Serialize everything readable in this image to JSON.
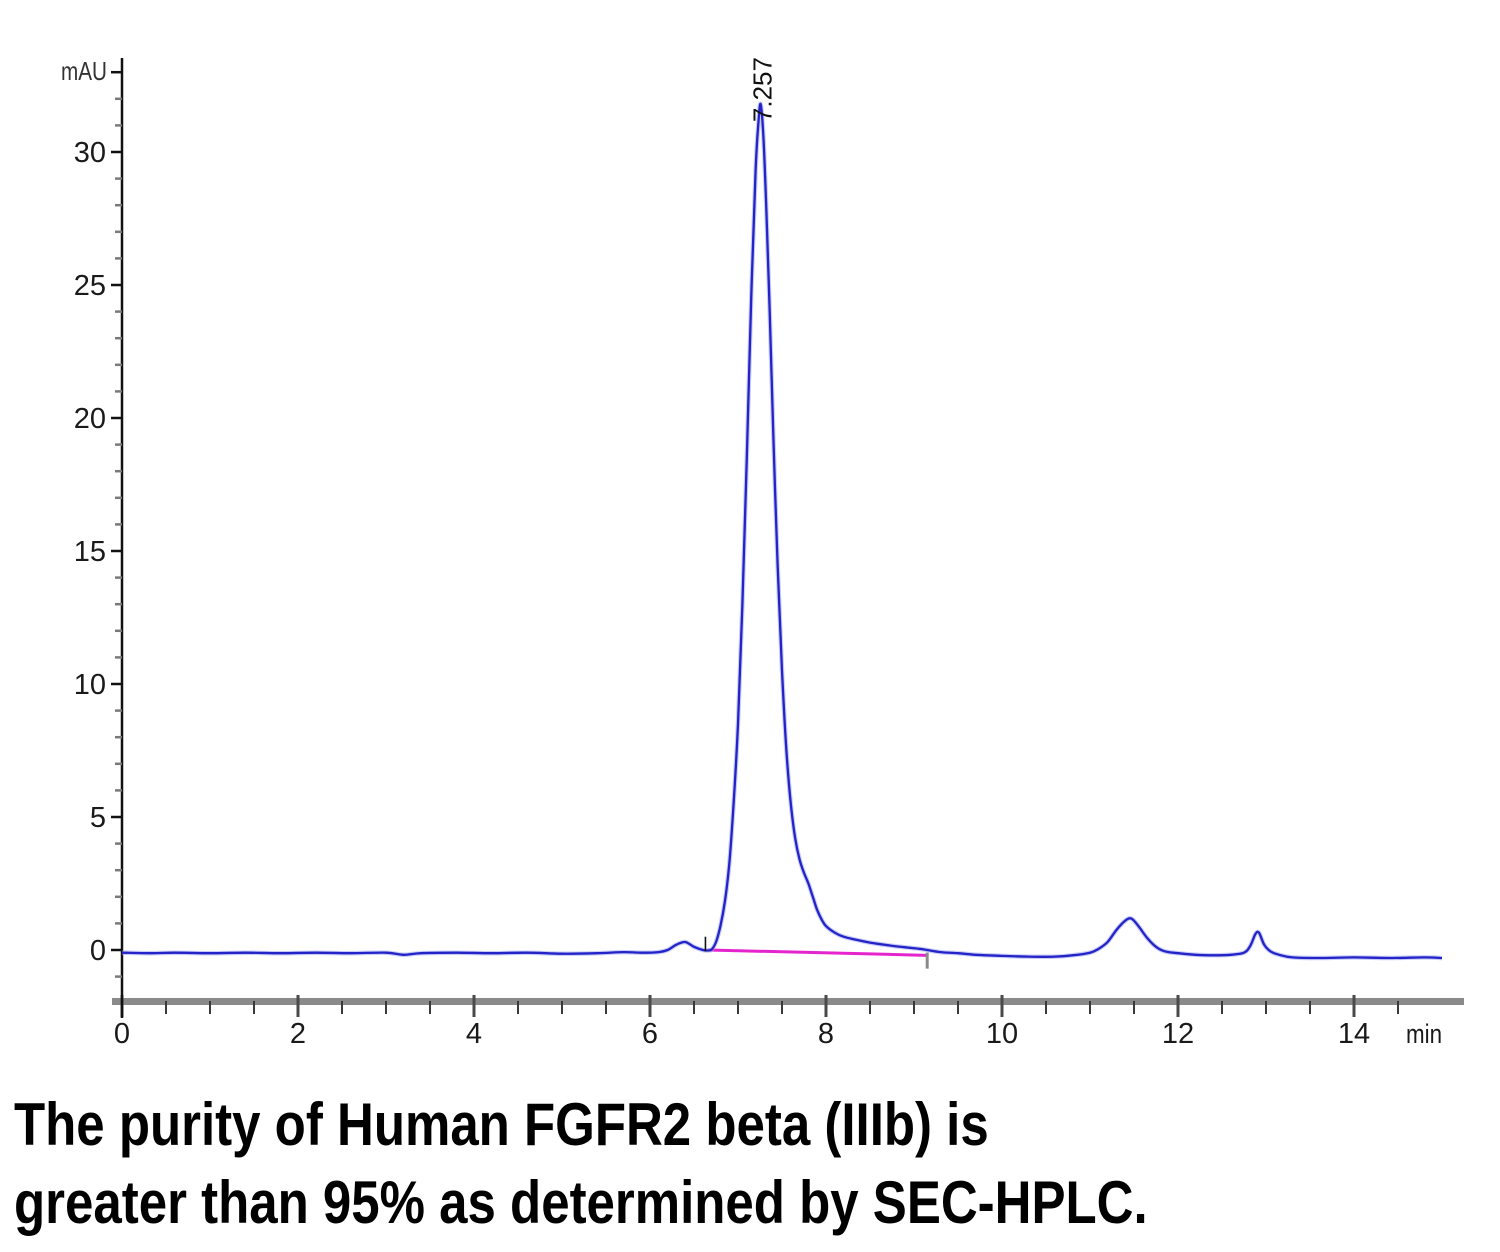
{
  "figure": {
    "kind": "SEC-HPLC chromatogram"
  },
  "caption": {
    "line1": "The purity of Human FGFR2 beta (IIIb) is",
    "line2": "greater than 95% as determined by SEC-HPLC."
  },
  "chart_data": {
    "type": "line",
    "title": "",
    "xlabel": "min",
    "ylabel": "mAU",
    "xlim": [
      0,
      15
    ],
    "ylim": [
      -2,
      33
    ],
    "x_ticks_major": [
      0,
      2,
      4,
      6,
      8,
      10,
      12,
      14
    ],
    "x_minor_step": 0.5,
    "y_ticks_major": [
      0,
      5,
      10,
      15,
      20,
      25,
      30
    ],
    "y_minor_step": 1,
    "y_axis_top_tick": 33,
    "grid": false,
    "legend": false,
    "colors": {
      "trace": "#2323c8",
      "trace_halo": "#9aa2ec",
      "integration_baseline": "#e524ce",
      "axis_band": "#8a8a8a",
      "major_tick": "#1a1a1a",
      "minor_tick": "#7a7a7a",
      "tick_label": "#1a1a1a"
    },
    "peaks": [
      {
        "rt_min": 6.4,
        "height_mAU": 0.3,
        "label": ""
      },
      {
        "rt_min": 7.257,
        "height_mAU": 31.8,
        "label": "7.257"
      },
      {
        "rt_min": 11.5,
        "height_mAU": 1.2,
        "label": ""
      },
      {
        "rt_min": 12.9,
        "height_mAU": 0.65,
        "label": ""
      }
    ],
    "integration": {
      "baseline_start": {
        "min": 6.66,
        "mAU": 0.0
      },
      "baseline_end": {
        "min": 9.15,
        "mAU": -0.2
      },
      "start_tick": {
        "min": 6.63,
        "from_mAU": 0.5,
        "to_mAU": -0.05,
        "color": "#111111"
      },
      "end_tick": {
        "min": 9.15,
        "from_mAU": -0.1,
        "to_mAU": -0.7,
        "color": "#8a8a8a"
      }
    },
    "series": [
      {
        "name": "UV absorbance trace",
        "x": [
          0,
          0.3,
          0.6,
          1.0,
          1.4,
          1.8,
          2.2,
          2.6,
          3.0,
          3.2,
          3.4,
          3.8,
          4.2,
          4.6,
          5.0,
          5.4,
          5.7,
          5.9,
          6.1,
          6.2,
          6.3,
          6.4,
          6.5,
          6.6,
          6.65,
          6.7,
          6.75,
          6.8,
          6.85,
          6.9,
          6.95,
          7.0,
          7.05,
          7.1,
          7.15,
          7.2,
          7.23,
          7.257,
          7.29,
          7.32,
          7.36,
          7.4,
          7.45,
          7.5,
          7.55,
          7.6,
          7.65,
          7.7,
          7.75,
          7.8,
          7.85,
          7.9,
          7.95,
          8.0,
          8.1,
          8.2,
          8.35,
          8.5,
          8.7,
          8.9,
          9.05,
          9.15,
          9.3,
          9.5,
          9.7,
          10.0,
          10.3,
          10.6,
          10.8,
          11.0,
          11.1,
          11.2,
          11.3,
          11.4,
          11.47,
          11.55,
          11.65,
          11.75,
          11.85,
          12.0,
          12.2,
          12.4,
          12.6,
          12.75,
          12.82,
          12.88,
          12.92,
          12.98,
          13.05,
          13.15,
          13.3,
          13.6,
          14.0,
          14.4,
          14.8,
          15.0
        ],
        "y": [
          -0.1,
          -0.12,
          -0.1,
          -0.12,
          -0.1,
          -0.12,
          -0.1,
          -0.12,
          -0.1,
          -0.18,
          -0.12,
          -0.1,
          -0.12,
          -0.1,
          -0.14,
          -0.12,
          -0.08,
          -0.1,
          -0.08,
          0.0,
          0.2,
          0.3,
          0.12,
          0.0,
          -0.02,
          0.02,
          0.3,
          0.9,
          1.8,
          3.2,
          5.5,
          8.5,
          13.0,
          18.5,
          24.5,
          29.3,
          31.0,
          31.8,
          30.5,
          28.0,
          24.0,
          19.5,
          14.5,
          10.5,
          7.5,
          5.5,
          4.2,
          3.4,
          2.9,
          2.5,
          2.0,
          1.5,
          1.15,
          0.9,
          0.65,
          0.5,
          0.38,
          0.28,
          0.18,
          0.1,
          0.05,
          0.0,
          -0.08,
          -0.12,
          -0.18,
          -0.22,
          -0.25,
          -0.25,
          -0.2,
          -0.1,
          0.05,
          0.3,
          0.75,
          1.1,
          1.18,
          0.9,
          0.45,
          0.12,
          -0.05,
          -0.12,
          -0.18,
          -0.2,
          -0.18,
          -0.1,
          0.15,
          0.6,
          0.65,
          0.2,
          -0.05,
          -0.18,
          -0.28,
          -0.3,
          -0.28,
          -0.3,
          -0.28,
          -0.3
        ]
      }
    ]
  }
}
